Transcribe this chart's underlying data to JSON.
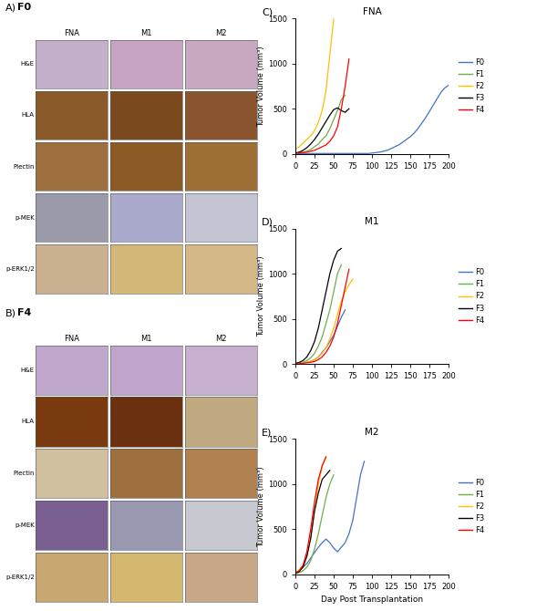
{
  "title_C": "FNA",
  "title_D": "M1",
  "title_E": "M2",
  "xlabel": "Day Post Transplantation",
  "ylabel": "Tumor Volume (mm³)",
  "ylim": [
    0,
    1500
  ],
  "xlim": [
    0,
    200
  ],
  "xticks": [
    0,
    25,
    50,
    75,
    100,
    125,
    150,
    175,
    200
  ],
  "yticks": [
    0,
    500,
    1000,
    1500
  ],
  "legend_labels": [
    "F0",
    "F1",
    "F2",
    "F3",
    "F4"
  ],
  "colors": {
    "F0": "#4472C4",
    "F1": "#70AD47",
    "F2": "#FFC000",
    "F3": "#000000",
    "F4": "#FF0000"
  },
  "panel_A_label": "A)",
  "panel_B_label": "B)",
  "panel_C_label": "C)",
  "panel_D_label": "D)",
  "panel_E_label": "E)",
  "panel_A_title": "F0",
  "panel_B_title": "F4",
  "col_labels": [
    "FNA",
    "M1",
    "M2"
  ],
  "row_labels": [
    "H&E",
    "HLA",
    "Plectin",
    "p-MEK",
    "p-ERK1/2"
  ],
  "img_colors_A": [
    [
      "#c4b0c8",
      "#c8a4c4",
      "#c8a8c0"
    ],
    [
      "#8B5a2b",
      "#7a4a1e",
      "#8B5530"
    ],
    [
      "#9e7040",
      "#8B5a25",
      "#9e7035"
    ],
    [
      "#9a9aaa",
      "#aaaacc",
      "#c4c4d4"
    ],
    [
      "#c8b090",
      "#d4b87a",
      "#d4b888"
    ]
  ],
  "img_colors_B": [
    [
      "#c0a8cc",
      "#c0a4cc",
      "#c8b0d0"
    ],
    [
      "#7a3a10",
      "#6a3010",
      "#c0a880"
    ],
    [
      "#d0c0a0",
      "#9e7040",
      "#b08050"
    ],
    [
      "#7a6090",
      "#9898b0",
      "#c8c8d0"
    ],
    [
      "#c8a870",
      "#d4b870",
      "#c8a888"
    ]
  ],
  "FNA": {
    "F0": {
      "x": [
        0,
        5,
        10,
        15,
        20,
        25,
        30,
        35,
        40,
        45,
        50,
        55,
        60,
        65,
        70,
        75,
        80,
        85,
        90,
        95,
        100,
        105,
        110,
        115,
        120,
        125,
        130,
        135,
        140,
        145,
        150,
        155,
        160,
        165,
        170,
        175,
        180,
        185,
        190,
        195,
        200
      ],
      "y": [
        5,
        5,
        5,
        5,
        5,
        5,
        5,
        5,
        5,
        5,
        5,
        5,
        5,
        5,
        5,
        5,
        5,
        5,
        5,
        5,
        10,
        15,
        20,
        30,
        40,
        60,
        80,
        100,
        130,
        160,
        190,
        230,
        280,
        340,
        400,
        470,
        540,
        610,
        680,
        730,
        760
      ]
    },
    "F1": {
      "x": [
        0,
        5,
        10,
        15,
        20,
        25,
        30,
        35,
        40,
        45,
        50,
        55,
        60,
        65
      ],
      "y": [
        10,
        15,
        20,
        30,
        50,
        80,
        110,
        160,
        200,
        280,
        380,
        480,
        600,
        650
      ]
    },
    "F2": {
      "x": [
        0,
        5,
        10,
        15,
        20,
        25,
        30,
        35,
        40,
        45,
        50
      ],
      "y": [
        50,
        80,
        120,
        160,
        200,
        260,
        350,
        480,
        700,
        1100,
        1490
      ]
    },
    "F3": {
      "x": [
        0,
        5,
        10,
        15,
        20,
        25,
        30,
        35,
        40,
        45,
        50,
        55,
        60,
        65,
        70
      ],
      "y": [
        10,
        20,
        40,
        70,
        110,
        160,
        220,
        290,
        360,
        430,
        490,
        510,
        480,
        460,
        500
      ]
    },
    "F4": {
      "x": [
        0,
        5,
        10,
        15,
        20,
        25,
        30,
        35,
        40,
        45,
        50,
        55,
        60,
        65,
        70
      ],
      "y": [
        5,
        10,
        15,
        20,
        30,
        40,
        60,
        80,
        100,
        140,
        200,
        300,
        500,
        750,
        1050
      ]
    }
  },
  "M1": {
    "F0": {
      "x": [
        0,
        5,
        10,
        15,
        20,
        25,
        30,
        35,
        40,
        45,
        50,
        55,
        60,
        65
      ],
      "y": [
        5,
        10,
        15,
        20,
        30,
        50,
        80,
        130,
        180,
        250,
        320,
        420,
        520,
        600
      ]
    },
    "F1": {
      "x": [
        0,
        5,
        10,
        15,
        20,
        25,
        30,
        35,
        40,
        45,
        50,
        55,
        60
      ],
      "y": [
        5,
        10,
        20,
        40,
        70,
        120,
        200,
        300,
        450,
        600,
        800,
        1000,
        1100
      ]
    },
    "F2": {
      "x": [
        0,
        5,
        10,
        15,
        20,
        25,
        30,
        35,
        40,
        45,
        50,
        55,
        60,
        65,
        70,
        75
      ],
      "y": [
        5,
        10,
        15,
        20,
        30,
        50,
        80,
        120,
        180,
        280,
        400,
        550,
        700,
        800,
        880,
        940
      ]
    },
    "F3": {
      "x": [
        0,
        5,
        10,
        15,
        20,
        25,
        30,
        35,
        40,
        45,
        50,
        55,
        60
      ],
      "y": [
        10,
        20,
        40,
        80,
        150,
        250,
        400,
        600,
        800,
        1000,
        1150,
        1250,
        1280
      ]
    },
    "F4": {
      "x": [
        0,
        5,
        10,
        15,
        20,
        25,
        30,
        35,
        40,
        45,
        50,
        55,
        60,
        65,
        70
      ],
      "y": [
        5,
        5,
        10,
        15,
        20,
        30,
        50,
        80,
        130,
        200,
        300,
        450,
        650,
        850,
        1050
      ]
    }
  },
  "M2": {
    "F0": {
      "x": [
        0,
        5,
        10,
        15,
        20,
        25,
        30,
        35,
        40,
        45,
        50,
        55,
        60,
        65,
        70,
        75,
        80,
        85,
        90
      ],
      "y": [
        20,
        40,
        80,
        120,
        180,
        240,
        300,
        350,
        390,
        350,
        290,
        250,
        300,
        350,
        450,
        600,
        850,
        1100,
        1250
      ]
    },
    "F1": {
      "x": [
        0,
        5,
        10,
        15,
        20,
        25,
        30,
        35,
        40,
        45,
        50
      ],
      "y": [
        10,
        20,
        40,
        80,
        150,
        280,
        450,
        650,
        850,
        1000,
        1100
      ]
    },
    "F2": {
      "x": [
        0,
        5,
        10,
        15,
        20,
        25,
        30,
        35,
        40
      ],
      "y": [
        20,
        50,
        100,
        200,
        400,
        700,
        1000,
        1200,
        1300
      ]
    },
    "F3": {
      "x": [
        0,
        5,
        10,
        15,
        20,
        25,
        30,
        35,
        40,
        45
      ],
      "y": [
        10,
        30,
        80,
        200,
        400,
        700,
        900,
        1050,
        1100,
        1150
      ]
    },
    "F4": {
      "x": [
        0,
        5,
        10,
        15,
        20,
        25,
        30,
        35,
        40
      ],
      "y": [
        15,
        40,
        100,
        250,
        500,
        800,
        1050,
        1200,
        1300
      ]
    }
  }
}
